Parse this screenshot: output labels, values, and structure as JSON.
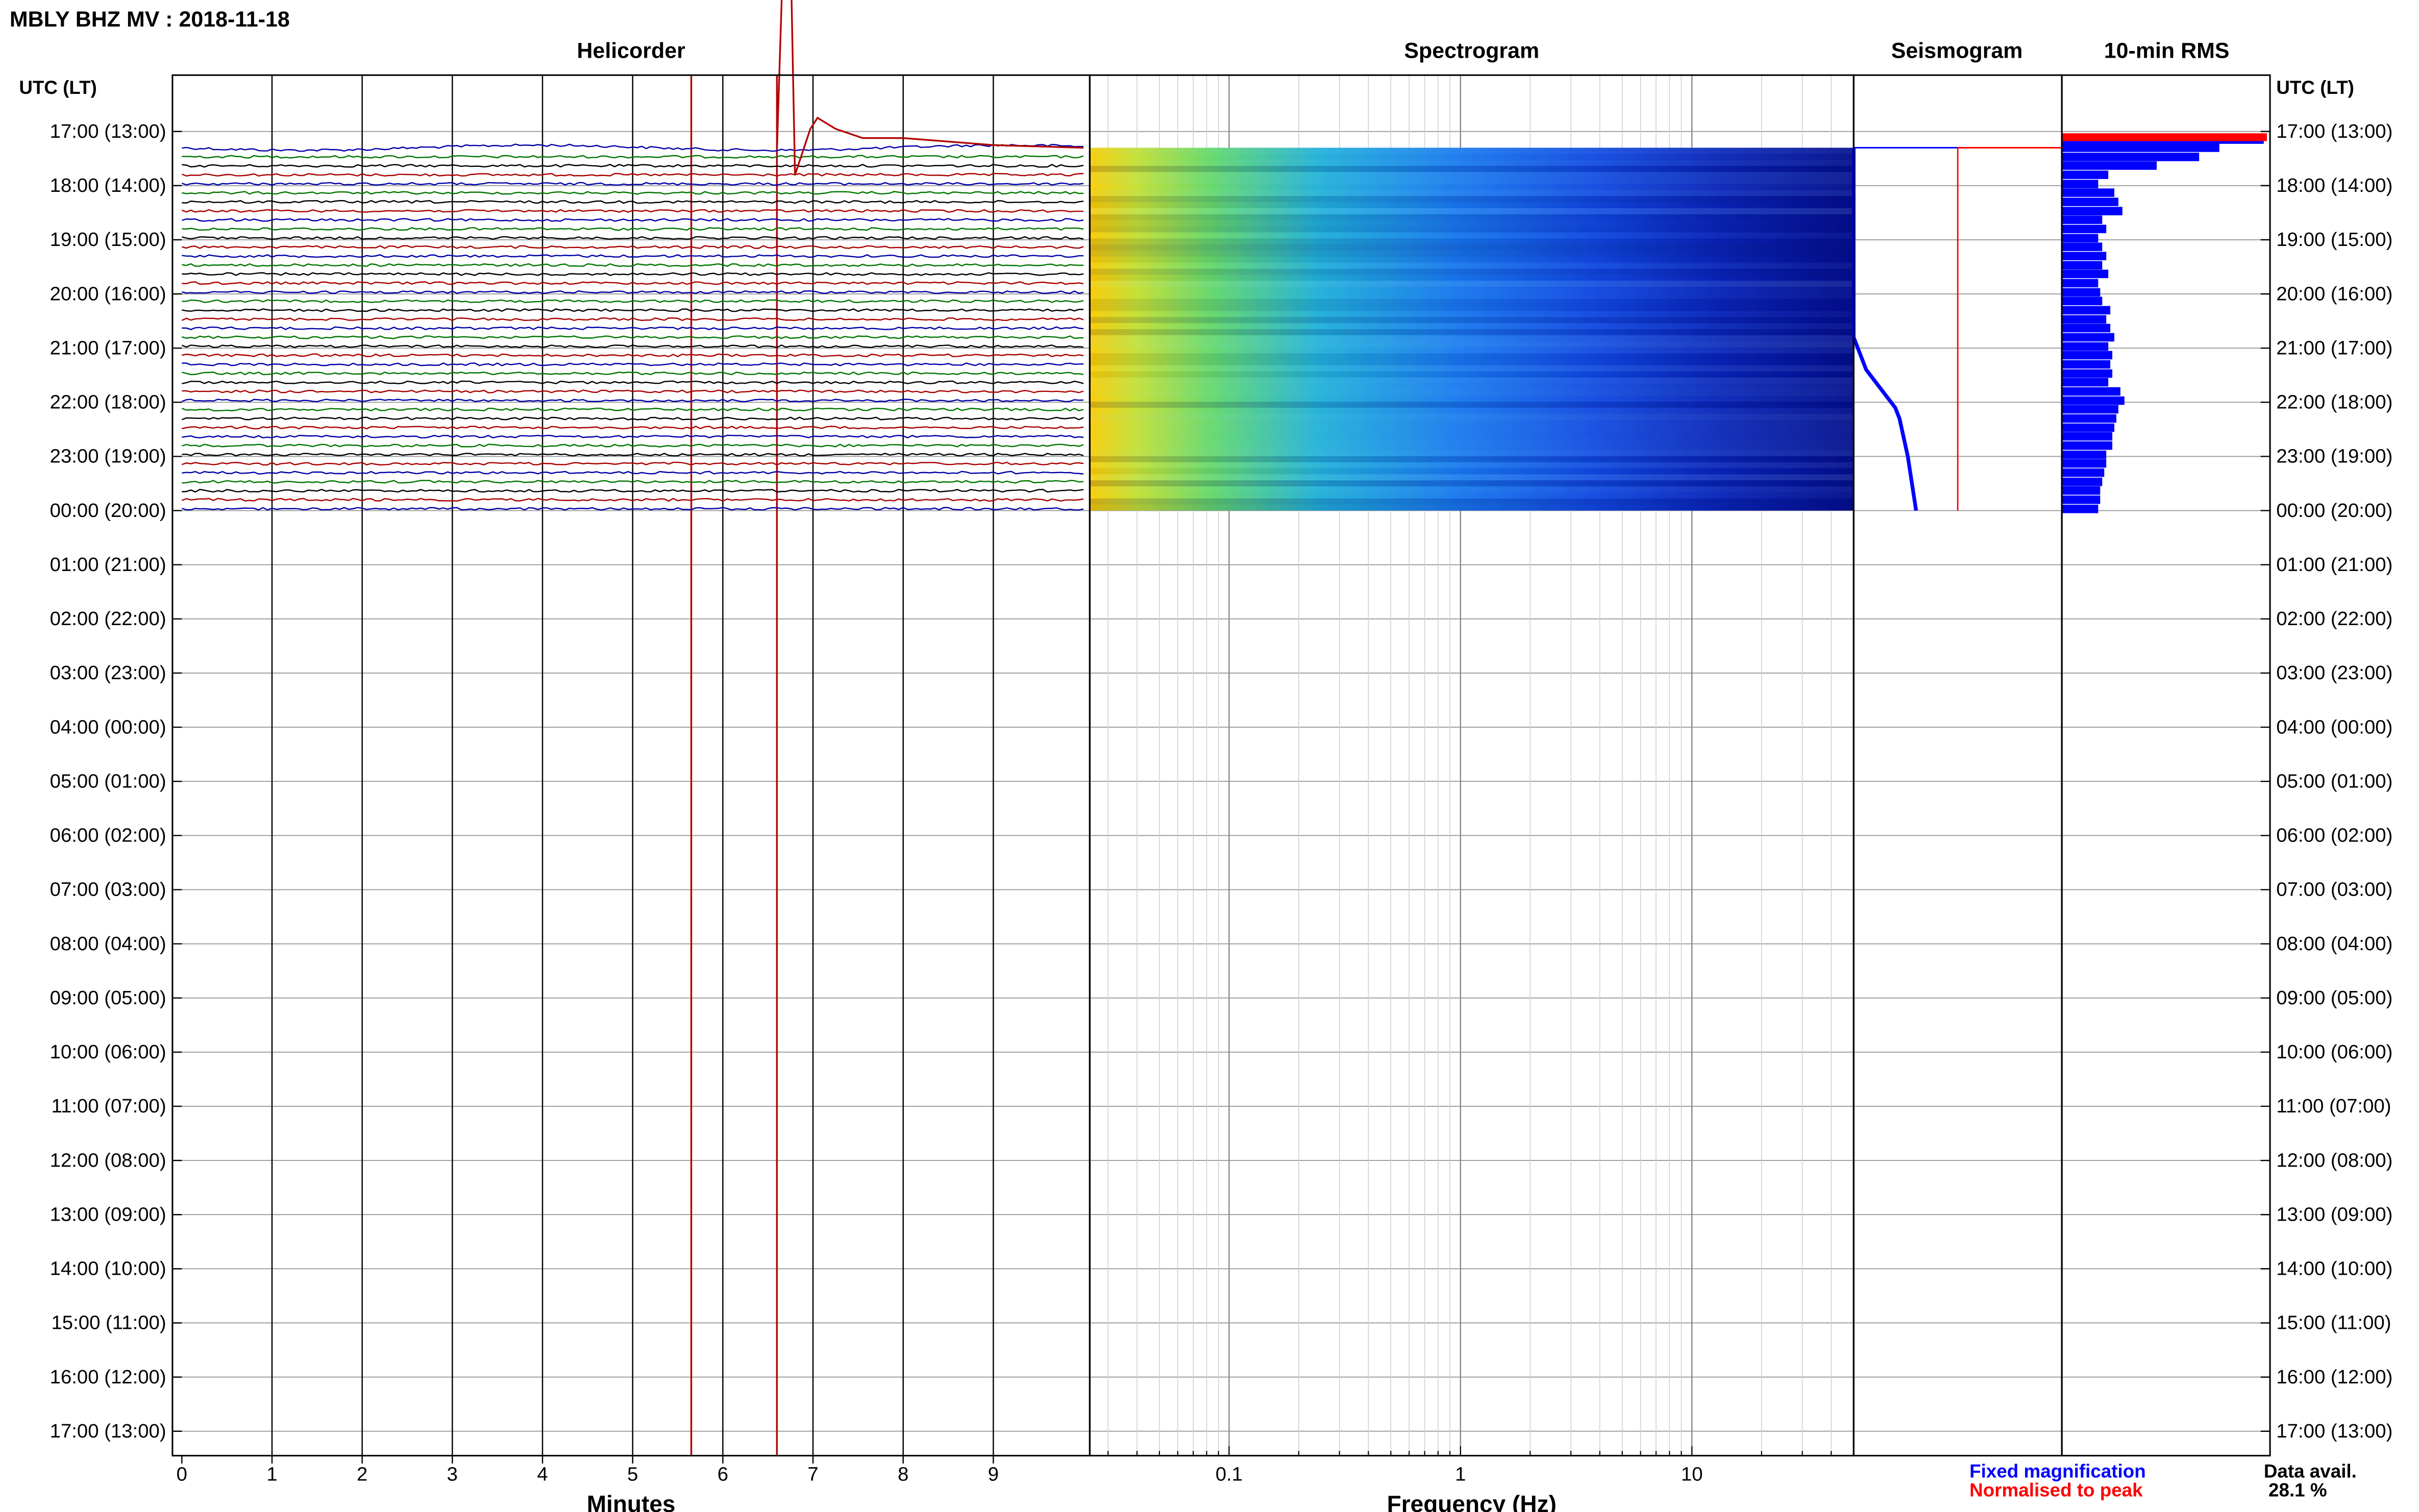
{
  "header": {
    "station_title": "MBLY BHZ MV : 2018-11-18"
  },
  "panels": {
    "helicorder_title": "Helicorder",
    "spectrogram_title": "Spectrogram",
    "seismogram_title": "Seismogram",
    "rms_title": "10-min RMS"
  },
  "axes": {
    "time_axis_label": "UTC (LT)",
    "minutes_label": "Minutes",
    "frequency_label": "Frequency (Hz)"
  },
  "legend": {
    "fixed_magnification": "Fixed magnification",
    "normalised_to_peak": "Normalised to peak",
    "fixed_color": "#0000ff",
    "normalised_color": "#ff0000"
  },
  "data_availability": {
    "label": "Data avail.",
    "value": "28.1 %"
  },
  "colors": {
    "trace_cycle": [
      "#0000aa",
      "#007700",
      "#000000",
      "#aa0000"
    ],
    "marker_line": "#b30000",
    "rms_fill": "#0000ff",
    "rms_peak": "#ff0000"
  },
  "chart_data": [
    {
      "type": "line",
      "name": "helicorder",
      "xlabel": "Minutes",
      "x_ticks": [
        0,
        1,
        2,
        3,
        4,
        5,
        6,
        7,
        8,
        9
      ],
      "xlim": [
        0,
        10
      ],
      "y_ticks": [
        "17:00 (13:00)",
        "18:00 (14:00)",
        "19:00 (15:00)",
        "20:00 (16:00)",
        "21:00 (17:00)",
        "22:00 (18:00)",
        "23:00 (19:00)",
        "00:00 (20:00)",
        "01:00 (21:00)",
        "02:00 (22:00)",
        "03:00 (23:00)",
        "04:00 (00:00)",
        "05:00 (01:00)",
        "06:00 (02:00)",
        "07:00 (03:00)",
        "08:00 (04:00)",
        "09:00 (05:00)",
        "10:00 (06:00)",
        "11:00 (07:00)",
        "12:00 (08:00)",
        "13:00 (09:00)",
        "14:00 (10:00)",
        "15:00 (11:00)",
        "16:00 (12:00)",
        "17:00 (13:00)"
      ],
      "data_start_hour": 17.3,
      "data_end_hour": 24.0,
      "trace_interval_minutes": 10,
      "marker_minutes": [
        5.65,
        6.6
      ],
      "event": {
        "start_min": 6.6,
        "trough_min": 6.72,
        "peak_min": 7.05,
        "trough_hour": 11.0,
        "peak_hour": 16.75
      }
    },
    {
      "type": "heatmap",
      "name": "spectrogram",
      "xlabel": "Frequency (Hz)",
      "x_scale": "log",
      "x_ticks": [
        0.1,
        1,
        10
      ],
      "xlim": [
        0.025,
        50
      ],
      "y_range_hours": [
        17.3,
        24.0
      ]
    },
    {
      "type": "line",
      "name": "seismogram",
      "fixed_magnification": [
        [
          17.3,
          0.0
        ],
        [
          20.8,
          0.0
        ],
        [
          21.4,
          0.06
        ],
        [
          22.1,
          0.2
        ],
        [
          22.3,
          0.22
        ],
        [
          23.0,
          0.26
        ],
        [
          24.0,
          0.3
        ]
      ],
      "normalised_line": {
        "x": 0.5,
        "spike_hour": 18.0
      }
    },
    {
      "type": "bar",
      "name": "10-min RMS",
      "bar_hours": [
        17.15,
        17.3,
        17.47,
        17.63,
        17.8,
        17.97,
        18.13,
        18.3,
        18.47,
        18.63,
        18.8,
        18.97,
        19.13,
        19.3,
        19.47,
        19.63,
        19.8,
        19.97,
        20.13,
        20.3,
        20.47,
        20.63,
        20.8,
        20.97,
        21.13,
        21.3,
        21.47,
        21.63,
        21.8,
        21.97,
        22.13,
        22.3,
        22.47,
        22.63,
        22.8,
        22.97,
        23.13,
        23.3,
        23.47,
        23.63,
        23.8,
        23.97
      ],
      "values": [
        1.0,
        0.78,
        0.68,
        0.47,
        0.23,
        0.18,
        0.26,
        0.28,
        0.3,
        0.2,
        0.22,
        0.18,
        0.2,
        0.22,
        0.2,
        0.23,
        0.18,
        0.19,
        0.2,
        0.24,
        0.22,
        0.24,
        0.26,
        0.23,
        0.25,
        0.24,
        0.25,
        0.23,
        0.29,
        0.31,
        0.28,
        0.27,
        0.26,
        0.25,
        0.25,
        0.22,
        0.22,
        0.21,
        0.2,
        0.19,
        0.19,
        0.18
      ],
      "peak_hour": 17.12
    }
  ]
}
